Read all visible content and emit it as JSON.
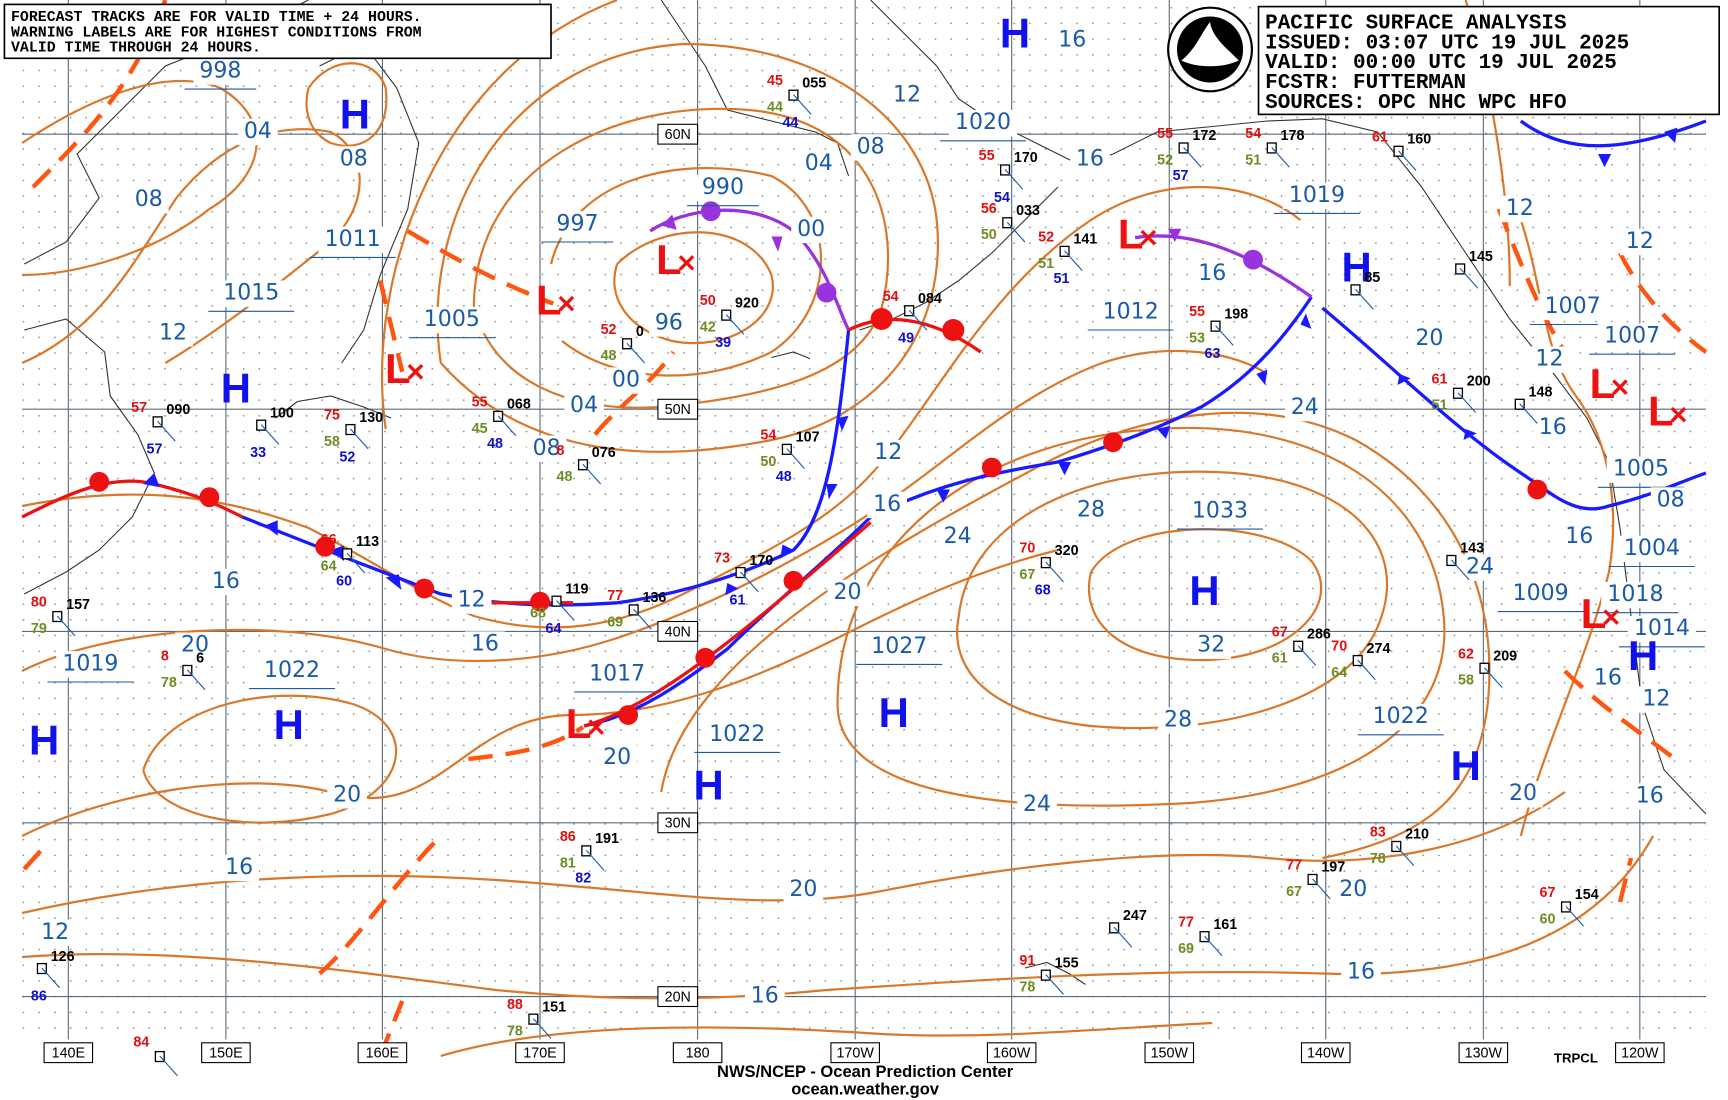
{
  "warning_box": [
    "FORECAST TRACKS ARE FOR VALID TIME + 24 HOURS.",
    "WARNING LABELS ARE FOR HIGHEST CONDITIONS FROM",
    "VALID TIME THROUGH 24 HOURS."
  ],
  "header": {
    "title": "PACIFIC SURFACE ANALYSIS",
    "issued": "ISSUED: 03:07 UTC 19 JUL 2025",
    "valid": "VALID:  00:00 UTC 19 JUL 2025",
    "forecaster": "FCSTR:  FUTTERMAN",
    "sources": "SOURCES: OPC NHC WPC HFO"
  },
  "footer": {
    "agency": "NWS/NCEP - Ocean Prediction Center",
    "url": "ocean.weather.gov"
  },
  "credit": "TRPCL",
  "longitude_labels": [
    "140E",
    "150E",
    "160E",
    "170E",
    "180",
    "170W",
    "160W",
    "150W",
    "140W",
    "130W",
    "120W"
  ],
  "latitude_labels": [
    "60N",
    "50N",
    "40N",
    "30N",
    "20N"
  ],
  "isobar_labels": [
    "998",
    "04",
    "08",
    "08",
    "1011",
    "1015",
    "12",
    "1005",
    "997",
    "990",
    "96",
    "00",
    "04",
    "08",
    "00",
    "04",
    "08",
    "12",
    "1020",
    "16",
    "16",
    "16",
    "1012",
    "1019",
    "1007",
    "1007",
    "12",
    "12",
    "20",
    "12",
    "16",
    "1005",
    "08",
    "1004",
    "16",
    "24",
    "1009",
    "1018",
    "1014",
    "16",
    "12",
    "20",
    "16",
    "24",
    "28",
    "1033",
    "32",
    "28",
    "1022",
    "24",
    "16",
    "12",
    "20",
    "1027",
    "1022",
    "1017",
    "20",
    "12",
    "16",
    "16",
    "20",
    "1019",
    "1022",
    "20",
    "16",
    "12",
    "24",
    "20",
    "20",
    "16",
    "16"
  ],
  "highs": [
    "H",
    "H",
    "H",
    "H",
    "H",
    "H",
    "H",
    "H",
    "H",
    "H",
    "H"
  ],
  "lows": [
    "L",
    "L",
    "L",
    "L",
    "L",
    "L",
    "L",
    "L"
  ],
  "stations": [
    {
      "pressure": "090",
      "air_temp": "57",
      "sea_temp": "57"
    },
    {
      "pressure": "100",
      "sea_temp": "33"
    },
    {
      "pressure": "130",
      "air_temp": "75",
      "dew_point": "58",
      "sea_temp": "52"
    },
    {
      "pressure": "068",
      "air_temp": "55",
      "dew_point": "45",
      "sea_temp": "48"
    },
    {
      "pressure": "076",
      "air_temp": "8",
      "dew_point": "48"
    },
    {
      "pressure": "0",
      "air_temp": "52",
      "dew_point": "48"
    },
    {
      "pressure": "920",
      "air_temp": "50",
      "dew_point": "42",
      "sea_temp": "39"
    },
    {
      "pressure": "107",
      "air_temp": "54",
      "dew_point": "50",
      "sea_temp": "48"
    },
    {
      "pressure": "055",
      "air_temp": "45",
      "dew_point": "44",
      "sea_temp": "44"
    },
    {
      "pressure": "084",
      "air_temp": "54",
      "sea_temp": "49"
    },
    {
      "pressure": "170",
      "air_temp": "55",
      "sea_temp": "54"
    },
    {
      "pressure": "033",
      "air_temp": "56",
      "dew_point": "50"
    },
    {
      "pressure": "141",
      "air_temp": "52",
      "dew_point": "51",
      "sea_temp": "51"
    },
    {
      "pressure": "172",
      "air_temp": "55",
      "dew_point": "52",
      "sea_temp": "57"
    },
    {
      "pressure": "178",
      "air_temp": "54",
      "dew_point": "51"
    },
    {
      "pressure": "160",
      "air_temp": "61"
    },
    {
      "pressure": "198",
      "air_temp": "55",
      "dew_point": "53",
      "sea_temp": "63"
    },
    {
      "pressure": "113",
      "air_temp": "66",
      "dew_point": "64",
      "sea_temp": "60"
    },
    {
      "pressure": "119",
      "dew_point": "68",
      "sea_temp": "64"
    },
    {
      "pressure": "136",
      "air_temp": "77",
      "dew_point": "69"
    },
    {
      "pressure": "170",
      "air_temp": "73",
      "sea_temp": "61"
    },
    {
      "pressure": "320",
      "air_temp": "70",
      "dew_point": "67",
      "sea_temp": "68"
    },
    {
      "pressure": "286",
      "air_temp": "67",
      "dew_point": "61"
    },
    {
      "pressure": "274",
      "air_temp": "70",
      "dew_point": "64"
    },
    {
      "pressure": "209",
      "air_temp": "62",
      "dew_point": "58"
    },
    {
      "pressure": "200",
      "air_temp": "61",
      "dew_point": "51"
    },
    {
      "pressure": "6",
      "air_temp": "8",
      "dew_point": "78"
    },
    {
      "pressure": "157",
      "air_temp": "80",
      "dew_point": "79"
    },
    {
      "pressure": "191",
      "air_temp": "86",
      "dew_point": "81",
      "sea_temp": "82"
    },
    {
      "pressure": "210",
      "air_temp": "83",
      "dew_point": "78"
    },
    {
      "pressure": "197",
      "air_temp": "77",
      "dew_point": "67"
    },
    {
      "pressure": "247"
    },
    {
      "pressure": "161",
      "air_temp": "77",
      "dew_point": "69"
    },
    {
      "pressure": "155",
      "air_temp": "91",
      "dew_point": "78"
    },
    {
      "pressure": "151",
      "air_temp": "88",
      "dew_point": "78"
    },
    {
      "pressure": "126",
      "sea_temp": "86"
    },
    {
      "pressure": "154",
      "air_temp": "67",
      "dew_point": "60"
    },
    {
      "pressure": "143"
    },
    {
      "air_temp": "84"
    },
    {
      "pressure": "85"
    },
    {
      "pressure": "148"
    },
    {
      "pressure": "145"
    }
  ]
}
